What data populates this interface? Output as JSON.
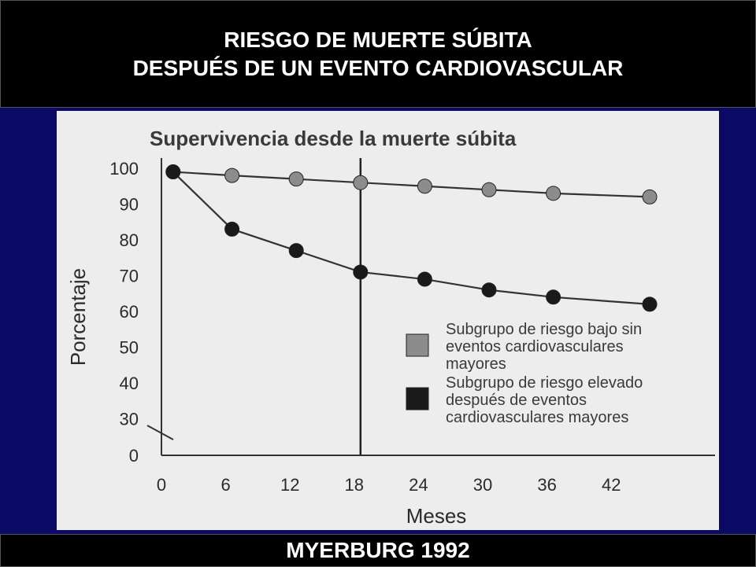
{
  "header": {
    "line1": "RIESGO DE MUERTE SÚBITA",
    "line2": "DESPUÉS DE UN EVENTO CARDIOVASCULAR"
  },
  "footer": {
    "text": "MYERBURG 1992"
  },
  "colors": {
    "slide_background": "#0a0a66",
    "banner_background": "#000000",
    "banner_text": "#ffffff",
    "chart_background": "#ededed",
    "low_risk": "#8c8c8c",
    "high_risk": "#1a1a1a"
  },
  "chart_data": {
    "type": "line",
    "title": "Supervivencia desde la muerte súbita",
    "xlabel": "Meses",
    "ylabel": "Porcentaje",
    "xlim": [
      0,
      46
    ],
    "ylim": [
      0,
      100
    ],
    "x_ticks": [
      "0",
      "6",
      "12",
      "18",
      "24",
      "30",
      "36",
      "42"
    ],
    "y_ticks": [
      "0",
      "30",
      "40",
      "50",
      "60",
      "70",
      "80",
      "90",
      "100"
    ],
    "axis_break": "y between 0 and 30",
    "reference_line_x": 18,
    "grid": false,
    "legend_position": "lower-right",
    "series": [
      {
        "name": "Subgrupo de riesgo bajo sin eventos cardiovasculares mayores",
        "name_lines": [
          "Subgrupo de riesgo bajo sin",
          "eventos cardiovasculares",
          "mayores"
        ],
        "color": "#8c8c8c",
        "x": [
          0.5,
          6,
          12,
          18,
          24,
          30,
          36,
          45
        ],
        "y": [
          99,
          98,
          97,
          96,
          95,
          94,
          93,
          92
        ]
      },
      {
        "name": "Subgrupo de riesgo elevado después de eventos cardiovasculares mayores",
        "name_lines": [
          "Subgrupo de riesgo elevado",
          "después de eventos",
          "cardiovasculares mayores"
        ],
        "color": "#1a1a1a",
        "x": [
          0.5,
          6,
          12,
          18,
          24,
          30,
          36,
          45
        ],
        "y": [
          99,
          83,
          77,
          71,
          69,
          66,
          64,
          62
        ]
      }
    ]
  }
}
